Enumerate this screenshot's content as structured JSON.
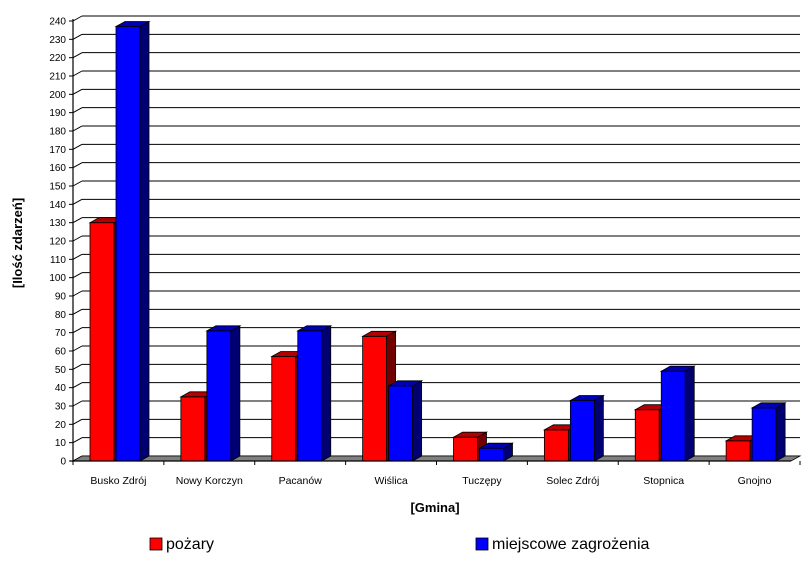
{
  "chart_data": {
    "type": "bar",
    "style": "3d-clustered-column",
    "title": "",
    "xlabel": "[Gmina]",
    "ylabel": "[Ilość zdarzeń]",
    "ylim": [
      0,
      240
    ],
    "ytick_step": 10,
    "grid": true,
    "legend_position": "bottom",
    "categories": [
      "Busko Zdrój",
      "Nowy Korczyn",
      "Pacanów",
      "Wiślica",
      "Tuczępy",
      "Solec Zdrój",
      "Stopnica",
      "Gnojno"
    ],
    "series": [
      {
        "name": "pożary",
        "color": "#ff0000",
        "values": [
          130,
          35,
          57,
          68,
          13,
          17,
          28,
          11
        ]
      },
      {
        "name": "miejscowe zagrożenia",
        "color": "#0000ff",
        "values": [
          237,
          71,
          71,
          41,
          7,
          33,
          49,
          29
        ]
      }
    ]
  }
}
